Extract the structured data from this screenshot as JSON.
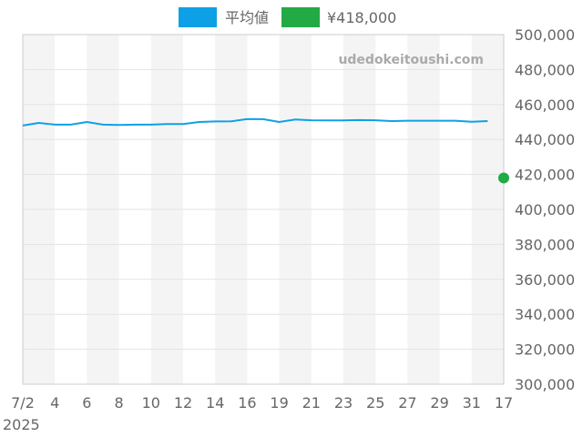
{
  "chart_data": {
    "type": "line",
    "legend_position": "top-center",
    "watermark": "udedokeitoushi.com",
    "grid": true,
    "ylim": [
      300000,
      500000
    ],
    "y_ticks": [
      300000,
      320000,
      340000,
      360000,
      380000,
      400000,
      420000,
      440000,
      460000,
      480000,
      500000
    ],
    "y_tick_labels": [
      "300,000",
      "320,000",
      "340,000",
      "360,000",
      "380,000",
      "400,000",
      "420,000",
      "440,000",
      "460,000",
      "480,000",
      "500,000"
    ],
    "x_tick_labels": [
      "7/2",
      "4",
      "6",
      "8",
      "10",
      "12",
      "14",
      "16",
      "19",
      "21",
      "23",
      "25",
      "27",
      "29",
      "31",
      "17"
    ],
    "x_year_label": "2025",
    "series": [
      {
        "name": "平均値",
        "color": "#0ea0e6",
        "values": [
          448000,
          449500,
          448500,
          448500,
          450000,
          448500,
          448300,
          448500,
          448500,
          448800,
          448800,
          450000,
          450300,
          450400,
          451700,
          451600,
          450000,
          451400,
          451000,
          450900,
          450900,
          451100,
          451000,
          450500,
          450700,
          450700,
          450700,
          450700,
          450100,
          450500
        ]
      },
      {
        "name": "¥418,000",
        "color": "#22aa44",
        "values": [
          418000
        ]
      }
    ]
  }
}
